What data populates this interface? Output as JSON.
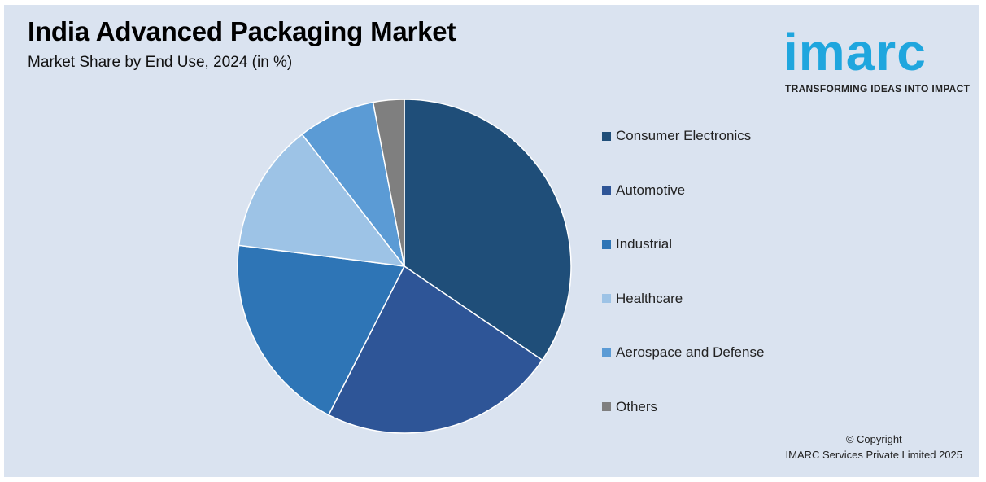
{
  "header": {
    "title": "India Advanced Packaging Market",
    "subtitle": "Market Share by End Use, 2024 (in %)"
  },
  "logo": {
    "word": "imarc",
    "tagline": "TRANSFORMING IDEAS INTO IMPACT",
    "color": "#1fa6de"
  },
  "footer": {
    "line1": "© Copyright",
    "line2": "IMARC Services Private Limited 2025"
  },
  "chart_data": {
    "type": "pie",
    "title": "India Advanced Packaging Market",
    "subtitle": "Market Share by End Use, 2024 (in %)",
    "legend_position": "right",
    "start_angle": "12 o'clock, clockwise",
    "slices": [
      {
        "label": "Consumer Electronics",
        "value": 34.5,
        "color": "#1f4e79"
      },
      {
        "label": "Automotive",
        "value": 23.0,
        "color": "#2e5597"
      },
      {
        "label": "Industrial",
        "value": 19.5,
        "color": "#2e75b6"
      },
      {
        "label": "Healthcare",
        "value": 12.5,
        "color": "#9dc3e6"
      },
      {
        "label": "Aerospace and Defense",
        "value": 7.5,
        "color": "#5b9bd5"
      },
      {
        "label": "Others",
        "value": 3.0,
        "color": "#7f7f7f"
      }
    ]
  }
}
